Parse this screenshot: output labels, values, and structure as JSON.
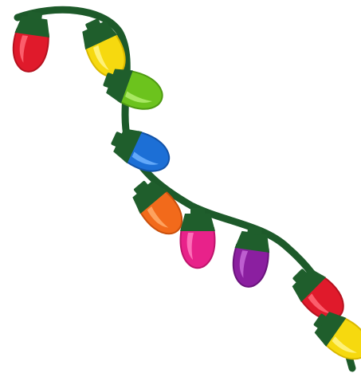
{
  "image": {
    "subject": "string-of-christmas-lights",
    "wire_color": "#1d5a2a",
    "socket_color": "#1f5e2c",
    "bulbs": [
      {
        "name": "red",
        "color": "#e01a2b",
        "shade": "#b5121f",
        "highlight": "#ff6b78"
      },
      {
        "name": "yellow",
        "color": "#f6d90f",
        "shade": "#d9b800",
        "highlight": "#fff48a"
      },
      {
        "name": "green",
        "color": "#6cc31d",
        "shade": "#4e9a12",
        "highlight": "#b3ef6e"
      },
      {
        "name": "blue",
        "color": "#1c6fd6",
        "shade": "#1353a8",
        "highlight": "#6fb3ff"
      },
      {
        "name": "orange",
        "color": "#f26a1b",
        "shade": "#c9500d",
        "highlight": "#ffab6b"
      },
      {
        "name": "pink",
        "color": "#e8228a",
        "shade": "#be156c",
        "highlight": "#ff7dbf"
      },
      {
        "name": "purple",
        "color": "#8b1fa0",
        "shade": "#6a137c",
        "highlight": "#c56ad8"
      },
      {
        "name": "red",
        "color": "#e01a2b",
        "shade": "#b5121f",
        "highlight": "#ff6b78"
      },
      {
        "name": "yellow",
        "color": "#f6d90f",
        "shade": "#d9b800",
        "highlight": "#fff48a"
      }
    ]
  }
}
